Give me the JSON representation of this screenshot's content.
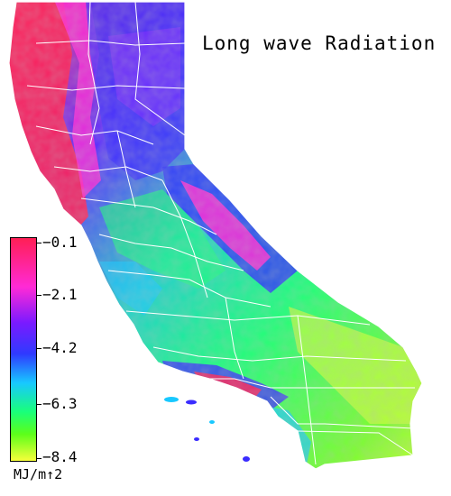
{
  "title": "Long wave Radiation",
  "legend": {
    "ticks": [
      "−0.1",
      "−2.1",
      "−4.2",
      "−6.3",
      "−8.4"
    ],
    "unit": "MJ/m↑2"
  },
  "colors": {
    "max": "#ff1f55",
    "high": "#ff2ad6",
    "mid_high": "#3a2cff",
    "mid": "#18c8ff",
    "low": "#19ff7a",
    "min": "#f7ff3a",
    "borders": "#ffffff"
  }
}
